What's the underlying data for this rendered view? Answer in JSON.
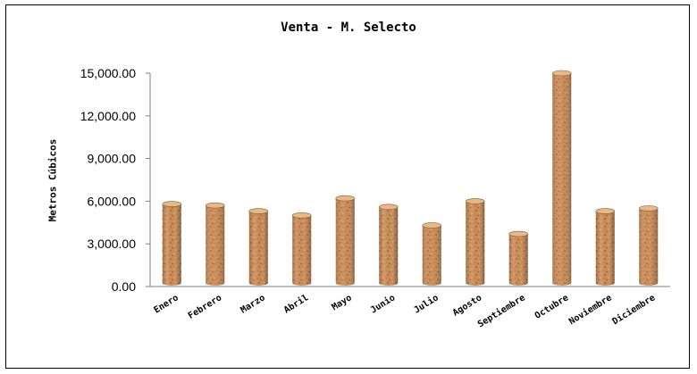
{
  "chart_data": {
    "type": "bar",
    "title": "Venta - M. Selecto",
    "xlabel": "",
    "ylabel": "Metros Cúbicos",
    "categories": [
      "Enero",
      "Febrero",
      "Marzo",
      "Abril",
      "Mayo",
      "Junio",
      "Julio",
      "Agosto",
      "Septiembre",
      "Octubre",
      "Noviembre",
      "Diciembre"
    ],
    "values": [
      5800,
      5700,
      5300,
      5000,
      6200,
      5600,
      4300,
      6000,
      3700,
      15000,
      5300,
      5500
    ],
    "ylim": [
      0,
      15000
    ],
    "yticks": [
      0,
      3000,
      6000,
      9000,
      12000,
      15000
    ],
    "ytick_labels": [
      "0.00",
      "3,000.00",
      "6,000.00",
      "9,000.00",
      "12,000.00",
      "15,000.00"
    ],
    "grid": false,
    "legend": "none",
    "bar_style": "3d-cylinder",
    "bar_color": "#c98a55",
    "bar_texture_dark": "#8a5a30",
    "bar_texture_light": "#e6b98a"
  }
}
